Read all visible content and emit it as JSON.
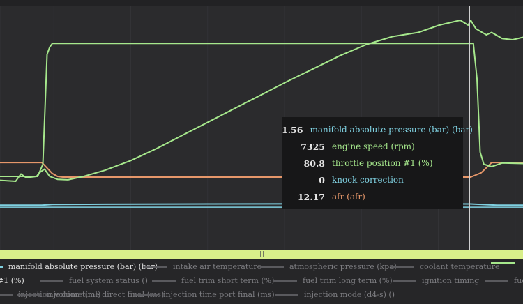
{
  "chart_data": {
    "type": "line",
    "cursor_x": 0.898,
    "series": [
      {
        "key": "map",
        "color": "#7fd0e0",
        "points": [
          [
            0,
            0.818
          ],
          [
            0.08,
            0.818
          ],
          [
            0.1,
            0.815
          ],
          [
            0.2,
            0.814
          ],
          [
            0.4,
            0.813
          ],
          [
            0.6,
            0.812
          ],
          [
            0.8,
            0.812
          ],
          [
            0.9,
            0.813
          ],
          [
            0.95,
            0.818
          ],
          [
            1,
            0.818
          ]
        ]
      },
      {
        "key": "rpm",
        "color": "#a6e88c",
        "points": [
          [
            0,
            0.716
          ],
          [
            0.03,
            0.72
          ],
          [
            0.04,
            0.69
          ],
          [
            0.05,
            0.705
          ],
          [
            0.07,
            0.7
          ],
          [
            0.075,
            0.685
          ],
          [
            0.085,
            0.67
          ],
          [
            0.095,
            0.7
          ],
          [
            0.11,
            0.712
          ],
          [
            0.13,
            0.714
          ],
          [
            0.16,
            0.7
          ],
          [
            0.2,
            0.675
          ],
          [
            0.25,
            0.635
          ],
          [
            0.3,
            0.585
          ],
          [
            0.35,
            0.53
          ],
          [
            0.4,
            0.475
          ],
          [
            0.45,
            0.42
          ],
          [
            0.5,
            0.365
          ],
          [
            0.55,
            0.31
          ],
          [
            0.6,
            0.258
          ],
          [
            0.65,
            0.205
          ],
          [
            0.7,
            0.16
          ],
          [
            0.75,
            0.127
          ],
          [
            0.8,
            0.11
          ],
          [
            0.84,
            0.08
          ],
          [
            0.88,
            0.06
          ],
          [
            0.895,
            0.08
          ],
          [
            0.9,
            0.06
          ],
          [
            0.91,
            0.095
          ],
          [
            0.93,
            0.12
          ],
          [
            0.94,
            0.11
          ],
          [
            0.96,
            0.135
          ],
          [
            0.98,
            0.14
          ],
          [
            1,
            0.13
          ]
        ]
      },
      {
        "key": "tps",
        "color": "#a6e88c",
        "points": [
          [
            0,
            0.7
          ],
          [
            0.072,
            0.7
          ],
          [
            0.082,
            0.65
          ],
          [
            0.09,
            0.2
          ],
          [
            0.095,
            0.17
          ],
          [
            0.1,
            0.155
          ],
          [
            0.905,
            0.155
          ],
          [
            0.912,
            0.3
          ],
          [
            0.918,
            0.6
          ],
          [
            0.925,
            0.65
          ],
          [
            0.94,
            0.66
          ],
          [
            0.96,
            0.645
          ],
          [
            1,
            0.647
          ]
        ]
      },
      {
        "key": "knock",
        "color": "#7fd0e0",
        "points": [
          [
            0,
            0.826
          ],
          [
            1,
            0.826
          ]
        ]
      },
      {
        "key": "afr",
        "color": "#e6976a",
        "points": [
          [
            0,
            0.643
          ],
          [
            0.08,
            0.643
          ],
          [
            0.1,
            0.688
          ],
          [
            0.11,
            0.7
          ],
          [
            0.12,
            0.703
          ],
          [
            0.9,
            0.703
          ],
          [
            0.92,
            0.685
          ],
          [
            0.94,
            0.643
          ],
          [
            1,
            0.643
          ]
        ]
      }
    ]
  },
  "tooltip": [
    {
      "value": "1.56",
      "label": "manifold absolute pressure (bar) (bar)",
      "color": "#7fd0e0"
    },
    {
      "value": "7325",
      "label": "engine speed (rpm)",
      "color": "#a6e88c"
    },
    {
      "value": "80.8",
      "label": "throttle position #1 (%)",
      "color": "#a6e88c"
    },
    {
      "value": "0",
      "label": "knock correction",
      "color": "#7fd0e0"
    },
    {
      "value": "12.17",
      "label": "afr (afr)",
      "color": "#e6976a"
    }
  ],
  "splitter": {
    "grip": "|||"
  },
  "legend": [
    [
      {
        "label": "manifold absolute pressure (bar) (bar)",
        "color": "#7fd0e0",
        "active": true
      },
      {
        "label": "intake air temperature",
        "color": "#5a5a5e",
        "active": false
      },
      {
        "label": "atmospheric pressure (kpa)",
        "color": "#5a5a5e",
        "active": false
      },
      {
        "label": "coolant temperature",
        "color": "#5a5a5e",
        "active": false
      },
      {
        "label": "",
        "color": "#a6e88c",
        "active": true
      }
    ],
    [
      {
        "label": "#1 (%)",
        "color": "",
        "active": true
      },
      {
        "label": "fuel system status ()",
        "color": "#5a5a5e",
        "active": false
      },
      {
        "label": "fuel trim short term (%)",
        "color": "#5a5a5e",
        "active": false
      },
      {
        "label": "fuel trim long term (%)",
        "color": "#5a5a5e",
        "active": false
      },
      {
        "label": "ignition timing",
        "color": "#5a5a5e",
        "active": false
      },
      {
        "label": "fuel",
        "color": "#5a5a5e",
        "active": false
      }
    ],
    [
      {
        "label": "injection volume (ml)",
        "color": "#5a5a5e",
        "active": false
      },
      {
        "label": "injection time direct final (ms)",
        "color": "#5a5a5e",
        "active": false
      },
      {
        "label": "injection time port final (ms)",
        "color": "#5a5a5e",
        "active": false
      },
      {
        "label": "injection mode (d4-s) ()",
        "color": "#5a5a5e",
        "active": false
      }
    ]
  ]
}
